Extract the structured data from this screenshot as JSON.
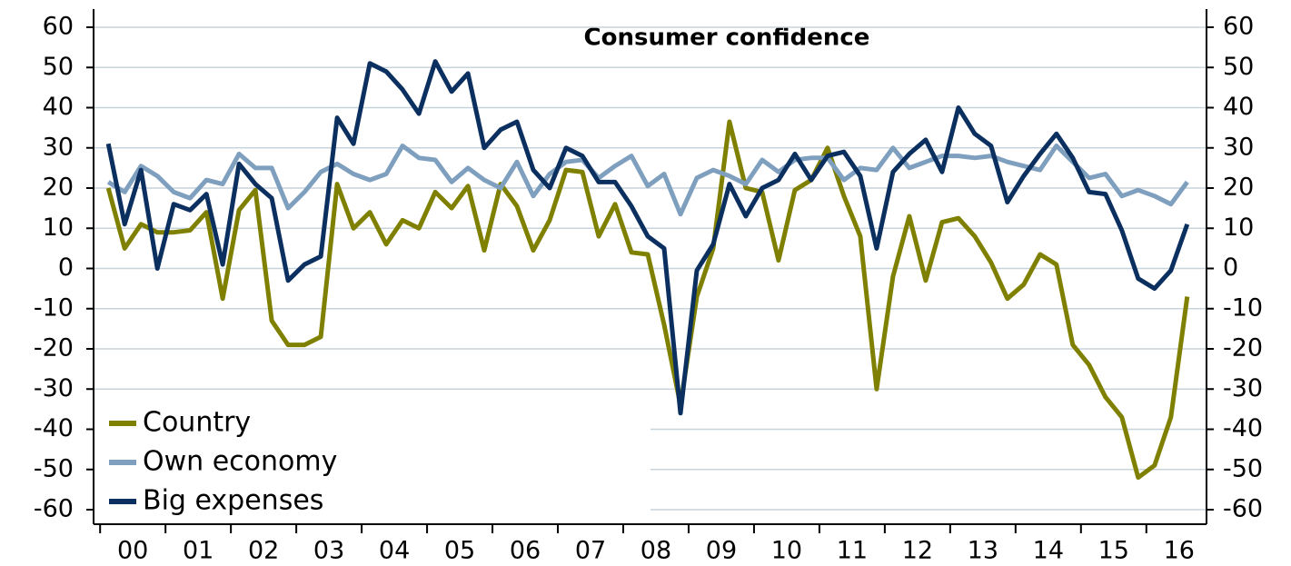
{
  "chart_data": {
    "type": "line",
    "title": "Consumer confidence",
    "x": [
      2000.125,
      2000.375,
      2000.625,
      2000.875,
      2001.125,
      2001.375,
      2001.625,
      2001.875,
      2002.125,
      2002.375,
      2002.625,
      2002.875,
      2003.125,
      2003.375,
      2003.625,
      2003.875,
      2004.125,
      2004.375,
      2004.625,
      2004.875,
      2005.125,
      2005.375,
      2005.625,
      2005.875,
      2006.125,
      2006.375,
      2006.625,
      2006.875,
      2007.125,
      2007.375,
      2007.625,
      2007.875,
      2008.125,
      2008.375,
      2008.625,
      2008.875,
      2009.125,
      2009.375,
      2009.625,
      2009.875,
      2010.125,
      2010.375,
      2010.625,
      2010.875,
      2011.125,
      2011.375,
      2011.625,
      2011.875,
      2012.125,
      2012.375,
      2012.625,
      2012.875,
      2013.125,
      2013.375,
      2013.625,
      2013.875,
      2014.125,
      2014.375,
      2014.625,
      2014.875,
      2015.125,
      2015.375,
      2015.625,
      2015.875,
      2016.125,
      2016.375,
      2016.625
    ],
    "series": [
      {
        "name": "Country",
        "color": "#7f8000",
        "values": [
          20,
          5,
          11,
          9,
          9,
          9.5,
          14,
          -7.5,
          14.5,
          19.5,
          -13,
          -19,
          -19,
          -17,
          21,
          10,
          14,
          6,
          12,
          10,
          19,
          15,
          20.5,
          4.5,
          21,
          15.5,
          4.5,
          12,
          24.5,
          24,
          8,
          16,
          4,
          3.5,
          -14,
          -34,
          -7,
          5,
          36.5,
          20,
          19,
          2,
          19.5,
          22,
          30,
          18,
          8,
          -30,
          -2,
          13,
          -3,
          11.5,
          12.5,
          8,
          1.5,
          -7.5,
          -4,
          3.5,
          1,
          -19,
          -24,
          -32,
          -37,
          -52,
          -49,
          -37,
          -7
        ]
      },
      {
        "name": "Own economy",
        "color": "#7f9fbf",
        "values": [
          21.5,
          19,
          25.5,
          23,
          19,
          17.5,
          22,
          21,
          28.5,
          25,
          25,
          15,
          19,
          24,
          26,
          23.5,
          22,
          23.5,
          30.5,
          27.5,
          27,
          21.5,
          25,
          22,
          20,
          26.5,
          18,
          23.5,
          26.5,
          27,
          22.5,
          25.5,
          28,
          20.5,
          23.5,
          13.5,
          22.5,
          24.5,
          23,
          21,
          27,
          24,
          27,
          27.5,
          27.5,
          22,
          25,
          24.5,
          30,
          25,
          26.5,
          28,
          28,
          27.5,
          28,
          26.5,
          25.5,
          24.5,
          30.5,
          26.5,
          22.5,
          23.5,
          18,
          19.5,
          18,
          16,
          21.5
        ]
      },
      {
        "name": "Big expenses",
        "color": "#0b3060",
        "values": [
          31,
          11,
          24.5,
          0,
          16,
          14.5,
          18.5,
          1,
          26,
          21,
          17.5,
          -3,
          1,
          3,
          37.5,
          31,
          51,
          49,
          44.5,
          38.5,
          51.5,
          44,
          48.5,
          30,
          34.5,
          36.5,
          24.5,
          20,
          30,
          28,
          21.5,
          21.5,
          15.5,
          8,
          5,
          -36,
          -0.5,
          6,
          21,
          13,
          20,
          22,
          28.5,
          22,
          28,
          29,
          23,
          5,
          24,
          28.5,
          32,
          24,
          40,
          33.5,
          30.5,
          16.5,
          23,
          28.5,
          33.5,
          27.5,
          19,
          18.5,
          9.5,
          -2.5,
          -5,
          -0.5,
          11
        ]
      }
    ],
    "xlim": [
      1999.9,
      2016.92
    ],
    "xticks": [
      {
        "value": 2000.5,
        "label": "00"
      },
      {
        "value": 2001.5,
        "label": "01"
      },
      {
        "value": 2002.5,
        "label": "02"
      },
      {
        "value": 2003.5,
        "label": "03"
      },
      {
        "value": 2004.5,
        "label": "04"
      },
      {
        "value": 2005.5,
        "label": "05"
      },
      {
        "value": 2006.5,
        "label": "06"
      },
      {
        "value": 2007.5,
        "label": "07"
      },
      {
        "value": 2008.5,
        "label": "08"
      },
      {
        "value": 2009.5,
        "label": "09"
      },
      {
        "value": 2010.5,
        "label": "10"
      },
      {
        "value": 2011.5,
        "label": "11"
      },
      {
        "value": 2012.5,
        "label": "12"
      },
      {
        "value": 2013.5,
        "label": "13"
      },
      {
        "value": 2014.5,
        "label": "14"
      },
      {
        "value": 2015.5,
        "label": "15"
      },
      {
        "value": 2016.5,
        "label": "16"
      }
    ],
    "ylim": [
      -60,
      60
    ],
    "yticks": [
      -60,
      -50,
      -40,
      -30,
      -20,
      -10,
      0,
      10,
      20,
      30,
      40,
      50,
      60
    ],
    "y2lim": [
      -60,
      60
    ],
    "y2ticks": [
      -60,
      -50,
      -40,
      -30,
      -20,
      -10,
      0,
      10,
      20,
      30,
      40,
      50,
      60
    ],
    "grid": true,
    "legend": "lower left"
  }
}
